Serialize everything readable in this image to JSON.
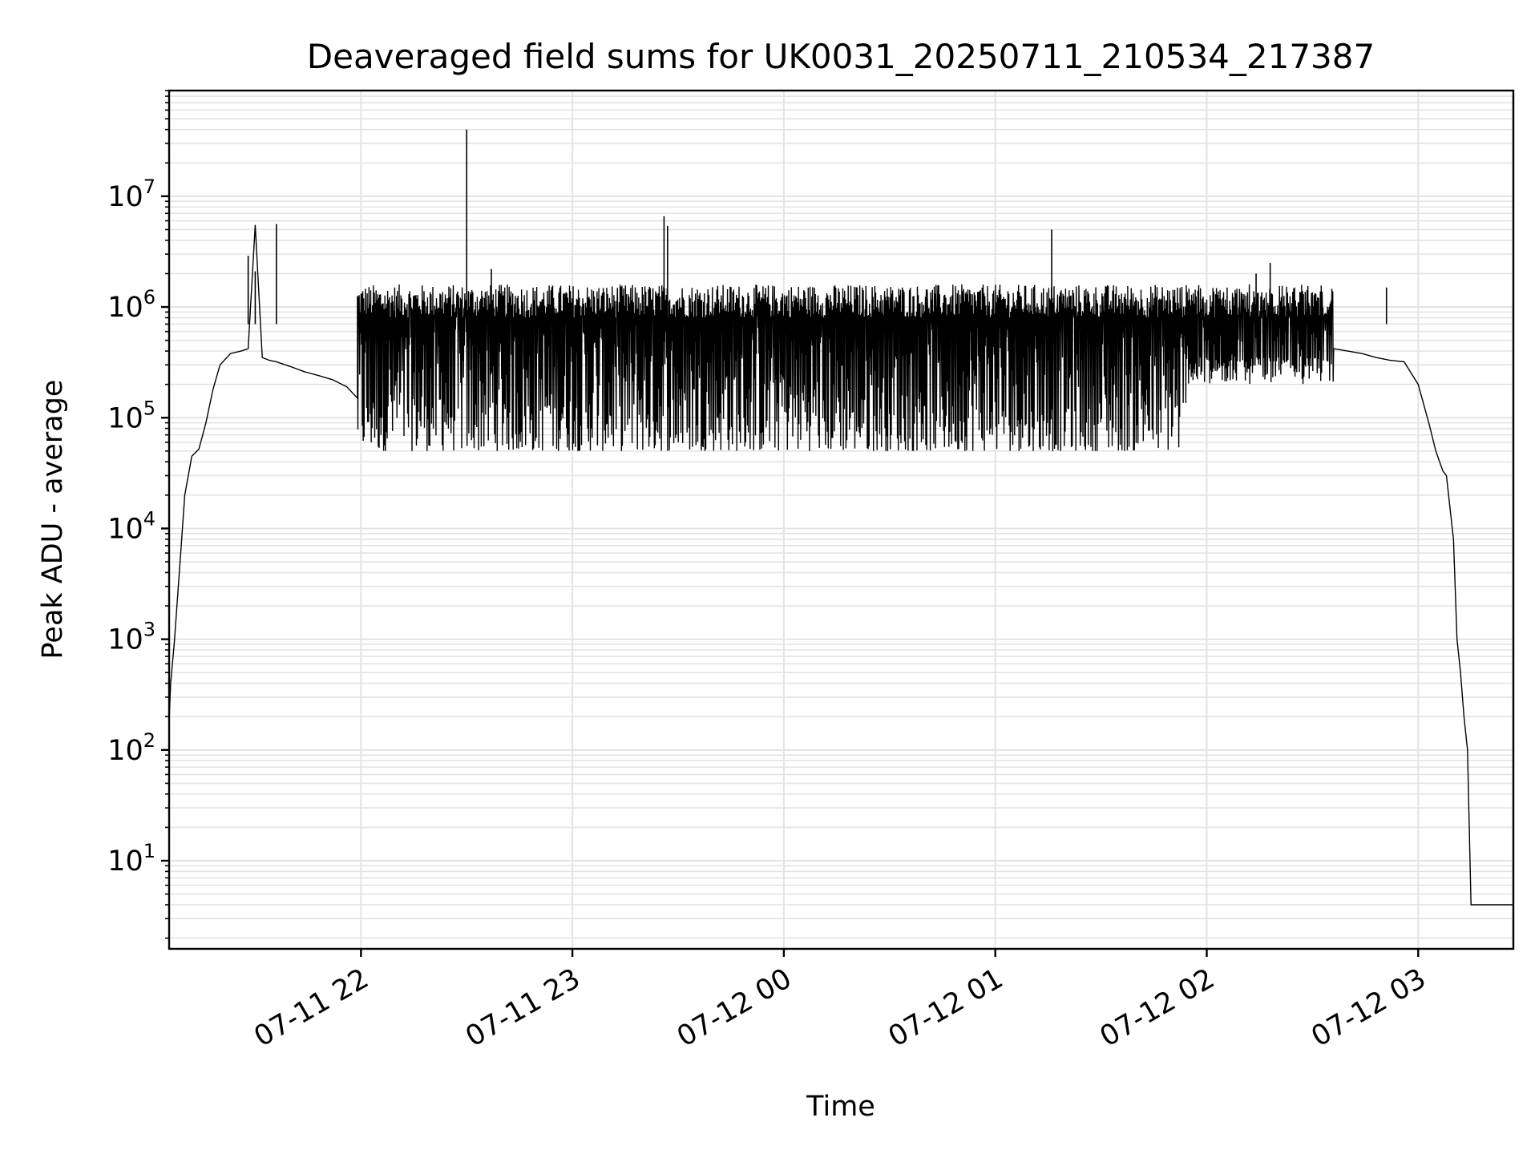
{
  "chart_data": {
    "type": "line",
    "title": "Deaveraged field sums for UK0031_20250711_210534_217387",
    "xlabel": "Time",
    "ylabel": "Peak ADU - average",
    "yscale": "log",
    "ylim": [
      1.6,
      90000000
    ],
    "xlim": [
      "2025-07-11 21:05:34",
      "2025-07-12 03:27:00"
    ],
    "grid": true,
    "line_color": "#000000",
    "x_ticks": [
      "2025-07-11 22:00",
      "2025-07-11 23:00",
      "2025-07-12 00:00",
      "2025-07-12 01:00",
      "2025-07-12 02:00",
      "2025-07-12 03:00"
    ],
    "x_tick_labels": [
      "07-11 22",
      "07-11 23",
      "07-12 00",
      "07-12 01",
      "07-12 02",
      "07-12 03"
    ],
    "y_ticks": [
      10,
      100,
      1000,
      10000,
      100000,
      1000000,
      10000000
    ],
    "y_tick_labels": [
      {
        "base": "10",
        "exp": "1"
      },
      {
        "base": "10",
        "exp": "2"
      },
      {
        "base": "10",
        "exp": "3"
      },
      {
        "base": "10",
        "exp": "4"
      },
      {
        "base": "10",
        "exp": "5"
      },
      {
        "base": "10",
        "exp": "6"
      },
      {
        "base": "10",
        "exp": "7"
      }
    ],
    "series": [
      {
        "x": [
          "2025-07-11 21:05:34",
          "2025-07-11 21:06",
          "2025-07-11 21:07",
          "2025-07-11 21:08",
          "2025-07-11 21:09",
          "2025-07-11 21:10",
          "2025-07-11 21:11",
          "2025-07-11 21:12",
          "2025-07-11 21:14",
          "2025-07-11 21:16",
          "2025-07-11 21:18",
          "2025-07-11 21:20",
          "2025-07-11 21:23",
          "2025-07-11 21:26",
          "2025-07-11 21:28",
          "2025-07-11 21:30",
          "2025-07-11 21:32",
          "2025-07-11 21:34",
          "2025-07-11 21:36",
          "2025-07-11 21:40",
          "2025-07-11 21:44",
          "2025-07-11 21:48",
          "2025-07-11 21:52",
          "2025-07-11 21:56",
          "2025-07-11 21:59"
        ],
        "y": [
          180,
          400,
          900,
          2500,
          7000,
          20000,
          30000,
          45000,
          52000,
          90000,
          180000,
          300000,
          380000,
          400000,
          420000,
          5500000,
          350000,
          330000,
          320000,
          290000,
          260000,
          240000,
          220000,
          190000,
          150000
        ]
      },
      {
        "x": [
          "2025-07-12 02:36",
          "2025-07-12 02:40",
          "2025-07-12 02:44",
          "2025-07-12 02:48",
          "2025-07-12 02:52",
          "2025-07-12 02:56",
          "2025-07-12 03:00",
          "2025-07-12 03:03",
          "2025-07-12 03:05",
          "2025-07-12 03:07",
          "2025-07-12 03:08",
          "2025-07-12 03:10",
          "2025-07-12 03:11",
          "2025-07-12 03:12",
          "2025-07-12 03:13",
          "2025-07-12 03:14",
          "2025-07-12 03:15",
          "2025-07-12 03:17",
          "2025-07-12 03:19",
          "2025-07-12 03:21",
          "2025-07-12 03:23",
          "2025-07-12 03:25",
          "2025-07-12 03:27"
        ],
        "y": [
          420000,
          400000,
          380000,
          350000,
          330000,
          320000,
          200000,
          90000,
          50000,
          33000,
          30000,
          8000,
          1000,
          500,
          200,
          100,
          4,
          4,
          4,
          4,
          4,
          4,
          4
        ]
      }
    ],
    "band": {
      "x_range": [
        "2025-07-11 21:59",
        "2025-07-12 02:36"
      ],
      "upper_range": [
        800000,
        1600000
      ],
      "lower_range": [
        50000,
        1000000
      ]
    },
    "spikes": [
      {
        "x": "2025-07-11 21:28",
        "y": 2900000
      },
      {
        "x": "2025-07-11 21:30",
        "y": 2100000
      },
      {
        "x": "2025-07-11 21:36",
        "y": 5600000
      },
      {
        "x": "2025-07-11 22:30",
        "y": 40000000
      },
      {
        "x": "2025-07-11 22:37",
        "y": 2200000
      },
      {
        "x": "2025-07-11 23:26",
        "y": 6600000
      },
      {
        "x": "2025-07-11 23:27",
        "y": 5400000
      },
      {
        "x": "2025-07-12 01:16",
        "y": 5000000
      },
      {
        "x": "2025-07-12 02:14",
        "y": 2000000
      },
      {
        "x": "2025-07-12 02:18",
        "y": 2500000
      },
      {
        "x": "2025-07-12 02:51",
        "y": 1500000
      }
    ]
  }
}
